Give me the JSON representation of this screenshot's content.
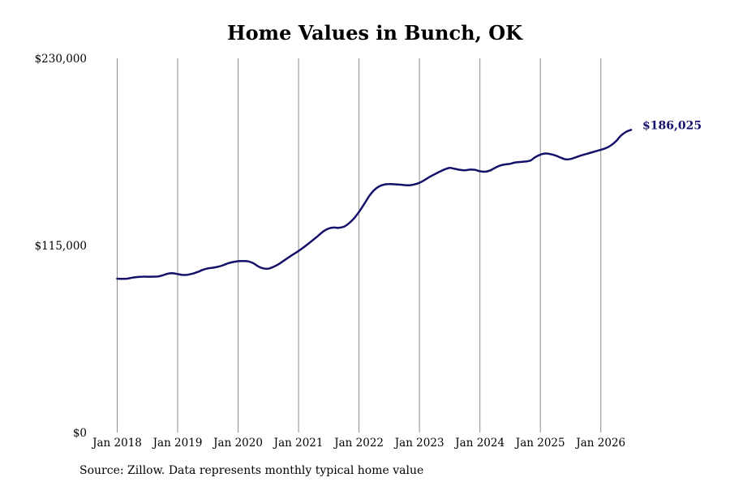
{
  "source_note": "Source: Zillow. Data represents monthly typical home value",
  "colors": {
    "line": "#15116a",
    "end_label": "#15116a",
    "gridline": "#8c8c8c"
  },
  "chart_data": {
    "type": "line",
    "title": "Home Values in Bunch, OK",
    "xlabel": "",
    "ylabel": "",
    "ylim": [
      0,
      230000
    ],
    "y_ticks": [
      0,
      115000,
      230000
    ],
    "y_tick_labels": [
      "$0",
      "$115,000",
      "$230,000"
    ],
    "x_tick_labels": [
      "Jan 2018",
      "Jan 2019",
      "Jan 2020",
      "Jan 2021",
      "Jan 2022",
      "Jan 2023",
      "Jan 2024",
      "Jan 2025",
      "Jan 2026"
    ],
    "x_ticks": [
      "2018-01",
      "2019-01",
      "2020-01",
      "2021-01",
      "2022-01",
      "2023-01",
      "2024-01",
      "2025-01",
      "2026-01"
    ],
    "xlim": [
      "2018-01",
      "2026-07"
    ],
    "grid": "vertical",
    "end_label": "$186,025",
    "series": [
      {
        "x": [
          "2018-01",
          "2018-02",
          "2018-03",
          "2018-04",
          "2018-05",
          "2018-06",
          "2018-07",
          "2018-08",
          "2018-09",
          "2018-10",
          "2018-11",
          "2018-12",
          "2019-01",
          "2019-02",
          "2019-03",
          "2019-04",
          "2019-05",
          "2019-06",
          "2019-07",
          "2019-08",
          "2019-09",
          "2019-10",
          "2019-11",
          "2019-12",
          "2020-01",
          "2020-02",
          "2020-03",
          "2020-04",
          "2020-05",
          "2020-06",
          "2020-07",
          "2020-08",
          "2020-09",
          "2020-10",
          "2020-11",
          "2020-12",
          "2021-01",
          "2021-02",
          "2021-03",
          "2021-04",
          "2021-05",
          "2021-06",
          "2021-07",
          "2021-08",
          "2021-09",
          "2021-10",
          "2021-11",
          "2021-12",
          "2022-01",
          "2022-02",
          "2022-03",
          "2022-04",
          "2022-05",
          "2022-06",
          "2022-07",
          "2022-08",
          "2022-09",
          "2022-10",
          "2022-11",
          "2022-12",
          "2023-01",
          "2023-02",
          "2023-03",
          "2023-04",
          "2023-05",
          "2023-06",
          "2023-07",
          "2023-08",
          "2023-09",
          "2023-10",
          "2023-11",
          "2023-12",
          "2024-01",
          "2024-02",
          "2024-03",
          "2024-04",
          "2024-05",
          "2024-06",
          "2024-07",
          "2024-08",
          "2024-09",
          "2024-10",
          "2024-11",
          "2024-12",
          "2025-01",
          "2025-02",
          "2025-03",
          "2025-04",
          "2025-05",
          "2025-06",
          "2025-07",
          "2025-08",
          "2025-09",
          "2025-10",
          "2025-11",
          "2025-12",
          "2026-01",
          "2026-02",
          "2026-03",
          "2026-04",
          "2026-05",
          "2026-06",
          "2026-07"
        ],
        "values": [
          94600,
          94500,
          94600,
          95200,
          95600,
          95800,
          95800,
          95800,
          95900,
          96600,
          97600,
          97900,
          97400,
          96900,
          97000,
          97700,
          98700,
          100000,
          100900,
          101300,
          101900,
          102800,
          104000,
          104800,
          105300,
          105400,
          105200,
          104100,
          102100,
          100900,
          100700,
          101800,
          103400,
          105500,
          107600,
          109600,
          111600,
          113800,
          116200,
          118700,
          121200,
          123800,
          125400,
          126000,
          125800,
          126500,
          128600,
          131600,
          135600,
          140300,
          145200,
          149000,
          151300,
          152400,
          152700,
          152600,
          152400,
          152100,
          152000,
          152500,
          153500,
          155200,
          157100,
          158700,
          160300,
          161700,
          162700,
          162100,
          161500,
          161200,
          161600,
          161500,
          160600,
          160300,
          161000,
          162700,
          164100,
          164800,
          165200,
          166000,
          166300,
          166600,
          167100,
          169300,
          170800,
          171500,
          171100,
          170300,
          169000,
          167900,
          168100,
          169100,
          170200,
          171100,
          172000,
          172900,
          173800,
          174800,
          176500,
          179000,
          182500,
          184800,
          186025
        ]
      }
    ]
  }
}
